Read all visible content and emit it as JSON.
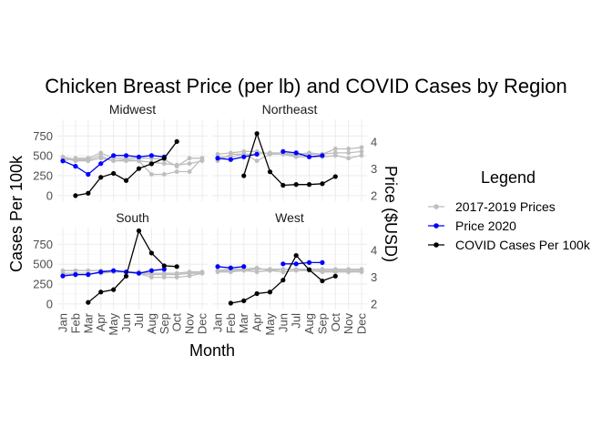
{
  "chart_data": {
    "type": "line",
    "title": "Chicken Breast Price (per lb) and COVID Cases by Region",
    "xlabel": "Month",
    "ylabel_left": "Cases Per 100k",
    "ylabel_right": "Price ($USD)",
    "months": [
      "Jan",
      "Feb",
      "Mar",
      "Apr",
      "May",
      "Jun",
      "Jul",
      "Aug",
      "Sep",
      "Oct",
      "Nov",
      "Dec"
    ],
    "left_ticks": [
      0,
      250,
      500,
      750
    ],
    "right_ticks": [
      2,
      3,
      4
    ],
    "left_ylim": [
      -70,
      960
    ],
    "price_ylim": [
      1.8,
      4.85
    ],
    "legend": {
      "title": "Legend",
      "placement": "right",
      "entries": [
        {
          "label": "2017-2019 Prices",
          "color": "#bebebe"
        },
        {
          "label": "Price 2020",
          "color": "#0000ff"
        },
        {
          "label": "COVID Cases Per 100k",
          "color": "#000000"
        }
      ]
    },
    "colors": {
      "prior": "#bebebe",
      "price2020": "#0000ff",
      "covid": "#000000"
    },
    "panels": [
      {
        "name": "Midwest",
        "prior": [
          [
            3.45,
            3.35,
            3.35,
            3.48,
            3.3,
            3.35,
            3.3,
            3.25,
            3.2,
            3.15,
            3.2,
            3.3
          ],
          [
            3.3,
            3.4,
            3.4,
            3.6,
            3.4,
            3.4,
            3.4,
            3.4,
            3.35,
            3.1,
            3.4,
            3.4
          ],
          [
            3.4,
            3.3,
            3.3,
            3.4,
            3.3,
            3.3,
            3.3,
            2.8,
            2.8,
            2.9,
            2.9,
            3.4
          ]
        ],
        "price2020": [
          3.3,
          3.1,
          2.8,
          3.2,
          3.5,
          3.5,
          3.45,
          3.5,
          3.45
        ],
        "covid": [
          null,
          0,
          30,
          230,
          280,
          190,
          340,
          400,
          470,
          680
        ]
      },
      {
        "name": "Northeast",
        "prior": [
          [
            3.55,
            3.6,
            3.65,
            3.65,
            3.55,
            3.55,
            3.5,
            3.55,
            3.55,
            3.6,
            3.6,
            3.65
          ],
          [
            3.45,
            3.45,
            3.55,
            3.55,
            3.6,
            3.6,
            3.55,
            3.6,
            3.55,
            3.75,
            3.75,
            3.8
          ],
          [
            3.3,
            3.55,
            3.55,
            3.3,
            3.55,
            3.55,
            3.45,
            3.45,
            3.45,
            3.5,
            3.4,
            3.5
          ]
        ],
        "price2020": [
          3.4,
          3.35,
          3.45,
          3.55,
          null,
          3.65,
          3.6,
          3.45,
          3.5
        ],
        "covid": [
          null,
          null,
          250,
          780,
          300,
          130,
          140,
          140,
          150,
          240
        ]
      },
      {
        "name": "South",
        "prior": [
          [
            3.25,
            3.25,
            3.25,
            3.25,
            3.2,
            3.2,
            3.2,
            3.15,
            3.15,
            3.15,
            3.2,
            3.2
          ],
          [
            3.15,
            3.15,
            3.15,
            3.15,
            3.2,
            3.2,
            3.15,
            3.1,
            3.1,
            3.1,
            3.15,
            3.15
          ],
          [
            3.1,
            3.1,
            3.1,
            3.2,
            3.2,
            3.2,
            3.15,
            3.0,
            3.0,
            3.0,
            3.05,
            3.15
          ]
        ],
        "price2020": [
          3.05,
          3.1,
          3.1,
          3.2,
          3.25,
          3.2,
          3.15,
          3.25,
          3.3
        ],
        "covid": [
          null,
          null,
          20,
          150,
          180,
          350,
          920,
          640,
          480,
          470
        ]
      },
      {
        "name": "West",
        "prior": [
          [
            3.25,
            3.3,
            3.3,
            3.35,
            3.25,
            3.3,
            3.3,
            3.3,
            3.3,
            3.3,
            3.3,
            3.3
          ],
          [
            3.2,
            3.2,
            3.25,
            3.3,
            3.3,
            3.3,
            3.3,
            3.3,
            3.25,
            3.25,
            3.25,
            3.25
          ],
          [
            3.25,
            3.25,
            3.25,
            3.2,
            3.25,
            3.2,
            3.25,
            3.25,
            3.2,
            3.2,
            3.2,
            3.2
          ]
        ],
        "price2020": [
          3.4,
          3.35,
          3.4,
          null,
          null,
          3.5,
          3.5,
          3.55,
          3.55
        ],
        "covid": [
          null,
          10,
          40,
          130,
          150,
          300,
          610,
          430,
          290,
          350
        ]
      }
    ]
  }
}
